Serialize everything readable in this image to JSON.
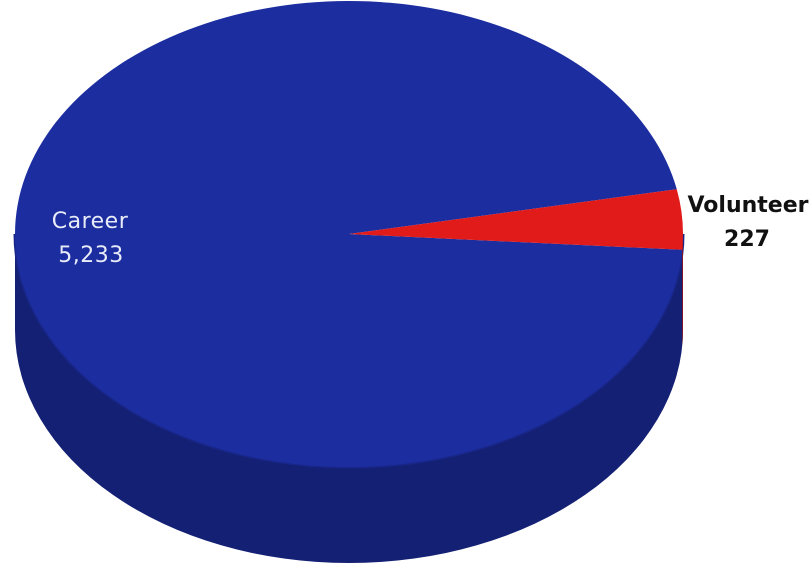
{
  "chart_data": {
    "type": "pie",
    "title": "",
    "style": "3d",
    "slices": [
      {
        "label": "Career",
        "value": 5233,
        "value_label": "5,233",
        "color": "#1c2da0"
      },
      {
        "label": "Volunteer",
        "value": 227,
        "value_label": "227",
        "color": "#e11a1a"
      }
    ],
    "legend": "none",
    "data_labels": "category-and-value"
  }
}
